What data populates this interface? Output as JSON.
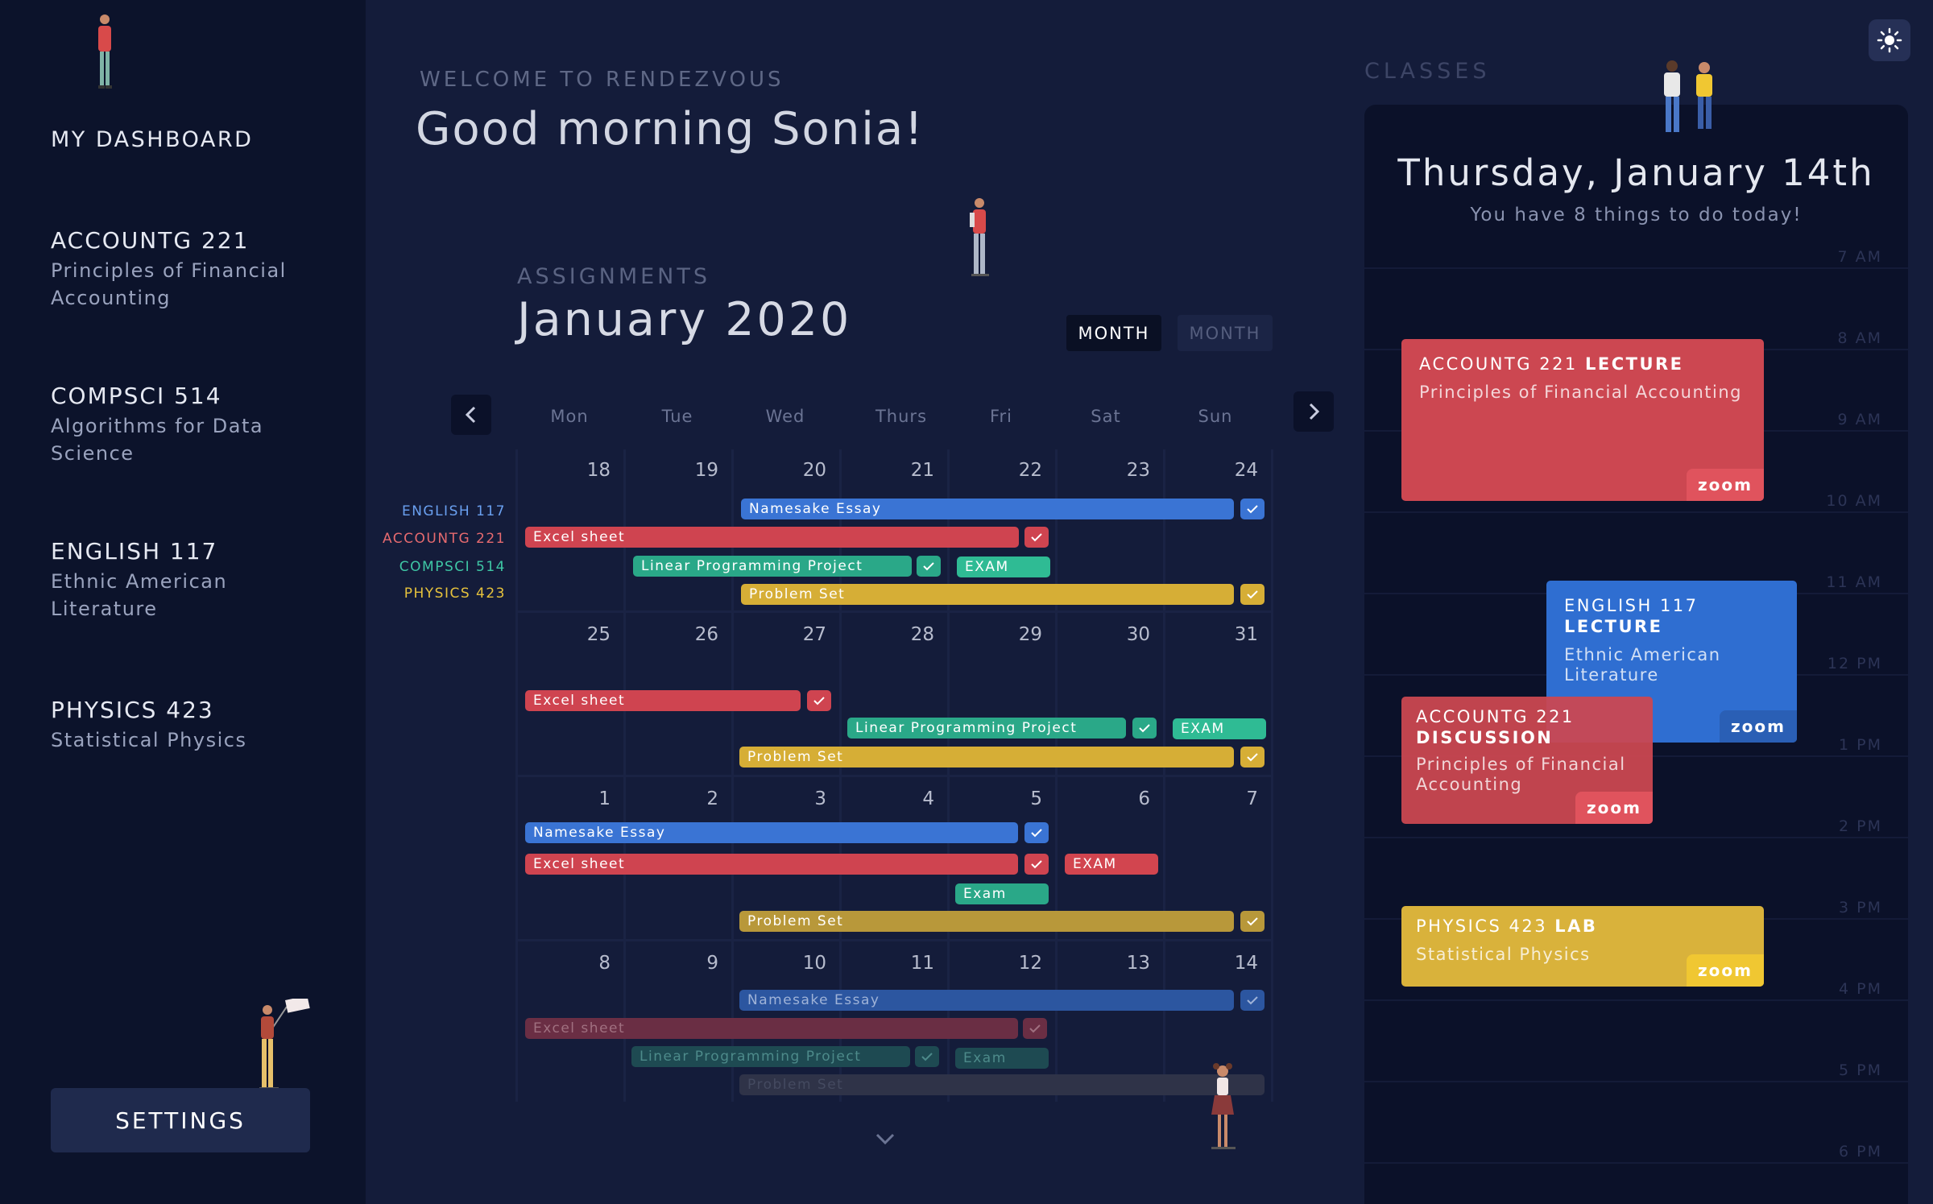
{
  "sidebar": {
    "title": "MY DASHBOARD",
    "courses": [
      {
        "code": "ACCOUNTG 221",
        "name": "Principles of Financial Accounting"
      },
      {
        "code": "COMPSCI 514",
        "name": "Algorithms for Data Science"
      },
      {
        "code": "ENGLISH 117",
        "name": "Ethnic American Literature"
      },
      {
        "code": "PHYSICS 423",
        "name": "Statistical Physics"
      }
    ],
    "settings_label": "SETTINGS"
  },
  "header": {
    "welcome": "WELCOME TO RENDEZVOUS",
    "greeting": "Good morning Sonia!"
  },
  "assignments": {
    "label": "ASSIGNMENTS",
    "month_title": "January 2020",
    "toggles": [
      "MONTH",
      "MONTH"
    ],
    "days": [
      "Mon",
      "Tue",
      "Wed",
      "Thurs",
      "Fri",
      "Sat",
      "Sun"
    ],
    "legend": [
      {
        "label": "ENGLISH 117",
        "color": "#6aa0f0"
      },
      {
        "label": "ACCOUNTG 221",
        "color": "#e66a6f"
      },
      {
        "label": "COMPSCI 514",
        "color": "#3fc7a5"
      },
      {
        "label": "PHYSICS 423",
        "color": "#e6c23c"
      }
    ],
    "weeks": [
      {
        "dates": [
          "18",
          "19",
          "20",
          "21",
          "22",
          "23",
          "24"
        ]
      },
      {
        "dates": [
          "25",
          "26",
          "27",
          "28",
          "29",
          "30",
          "31"
        ]
      },
      {
        "dates": [
          "1",
          "2",
          "3",
          "4",
          "5",
          "6",
          "7"
        ]
      },
      {
        "dates": [
          "8",
          "9",
          "10",
          "11",
          "12",
          "13",
          "14"
        ]
      }
    ],
    "bars": {
      "w1_essay": "Namesake Essay",
      "w1_excel": "Excel sheet",
      "w1_lpp": "Linear Programming Project",
      "w1_exam": "EXAM",
      "w1_pset": "Problem Set",
      "w2_excel": "Excel sheet",
      "w2_lpp": "Linear Programming Project",
      "w2_exam": "EXAM",
      "w2_pset": "Problem Set",
      "w3_essay": "Namesake Essay",
      "w3_excel": "Excel sheet",
      "w3_exam": "EXAM",
      "w3_exam2": "Exam",
      "w3_pset": "Problem Set",
      "w4_essay": "Namesake Essay",
      "w4_excel": "Excel sheet",
      "w4_lpp": "Linear Programming Project",
      "w4_exam": "Exam",
      "w4_pset": "Problem Set"
    }
  },
  "classes": {
    "label": "CLASSES",
    "date_title": "Thursday, January 14th",
    "date_sub": "You have 8 things to do today!",
    "hours": [
      "7 AM",
      "8 AM",
      "9 AM",
      "10 AM",
      "11 AM",
      "12 PM",
      "1 PM",
      "2 PM",
      "3 PM",
      "4 PM",
      "5 PM",
      "6 PM"
    ],
    "events": [
      {
        "course": "ACCOUNTG 221",
        "type": "LECTURE",
        "name": "Principles of Financial Accounting",
        "zoom": "zoom"
      },
      {
        "course": "ENGLISH 117",
        "type": "LECTURE",
        "name": "Ethnic American Literature",
        "zoom": "zoom"
      },
      {
        "course": "ACCOUNTG 221",
        "type": "DISCUSSION",
        "name": "Principles of Financial Accounting",
        "zoom": "zoom"
      },
      {
        "course": "PHYSICS 423",
        "type": "LAB",
        "name": "Statistical Physics",
        "zoom": "zoom"
      }
    ]
  },
  "colors": {
    "blue": "#3a78d8",
    "red": "#d2454f",
    "green": "#2fb28f",
    "yellow": "#e0b83a"
  },
  "icons": [
    "chevron-left-icon",
    "chevron-right-icon",
    "chevron-down-icon",
    "check-icon",
    "sun-icon"
  ]
}
